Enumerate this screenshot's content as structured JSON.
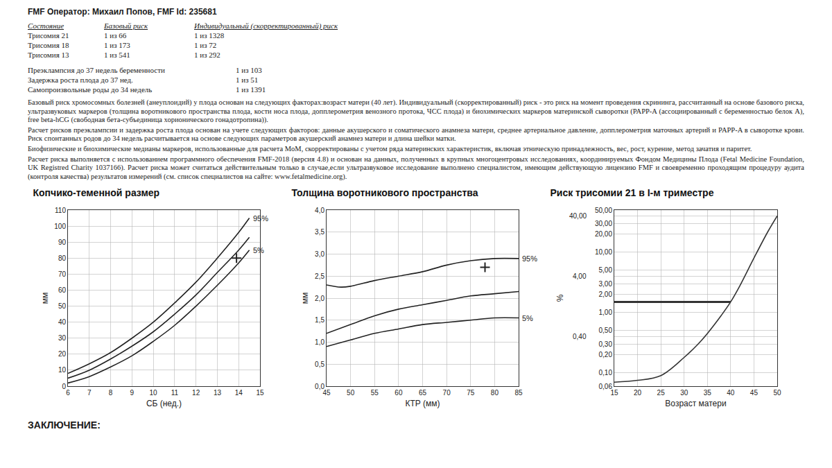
{
  "header": "FMF Оператор: Михаил Попов, FMF Id: 235681",
  "risk_table": {
    "columns": [
      "Состояние",
      "Базовый риск",
      "Индивидуальный (скорректированный) риск"
    ],
    "rows": [
      [
        "Трисомия 21",
        "1 из 66",
        "1 из 1328"
      ],
      [
        "Трисомия 18",
        "1 из 173",
        "1 из 72"
      ],
      [
        "Трисомия 13",
        "1 из 541",
        "1 из 292"
      ]
    ]
  },
  "complication_table": {
    "rows": [
      [
        "Преэклампсия до 37 недель беременности",
        "1 из 103"
      ],
      [
        "Задержка роста плода до 37 нед.",
        "1 из 51"
      ],
      [
        "Самопроизвольные роды до 34 недель",
        "1 из 1391"
      ]
    ]
  },
  "paragraphs": [
    "Базовый риск хромосомных болезней (анеуплоидий) у плода основан на следующих факторах:возраст матери (40 лет). Индивидуальный (скорректированный) риск - это риск на момент проведения скрининга, рассчитанный на основе базового риска, ультразвуковых маркеров (толщина воротникового пространства плода, кости носа плода, допплерометрия венозного протока, ЧСС плода) и биохимических маркеров материнской сыворотки (PAPP-A (ассоциированный с беременностью белок А), free beta-hCG (свободная бета-субъединица хорионического гонадотропина)).",
    "Расчет рисков преэклампсии и задержка роста плода основан на учете следующих факторов: данные акушерского и соматического анамнеза матери, среднее артериальное давление, допплерометрия маточных артерий и PAPP-A в сыворотке крови. Риск спонтанных родов до 34 недель расчитывается на основе следующих параметров акушерский анамнез матери и длина шейки матки.",
    "Биофизические и биохимические медианы маркеров, использованные для расчета MoM, скорректированы с учетом ряда материнских характеристик, включая этническую принадлежность, вес, рост, курение, метод зачатия и паритет.",
    "Расчет риска выполняется с использованием программного обеспечения FMF-2018 (версия 4.8) и основан на данных, полученных в крупных многоцентровых исследованиях, координируемых Фондом Медицины Плода (Fetal Medicine Foundation, UK Registred Charity 1037166). Расчет риска может считаться действительным только в случае,если ультразвуковое исследование выполнено специалистом, имеющим действующую лицензию FMF и своевременно проходящим процедуру аудита (контроля качества) результатов измерений (см. список специалистов на сайте: www.fetalmedicine.org)."
  ],
  "chart_data": [
    {
      "type": "line",
      "title": "Копчико-теменной размер",
      "x_label": "СБ (нед.)",
      "y_label": "мм",
      "xlim": [
        6,
        15
      ],
      "xticks": [
        6,
        7,
        8,
        9,
        10,
        11,
        12,
        13,
        14,
        15
      ],
      "ylim": [
        0,
        110
      ],
      "yticks": [
        0,
        10,
        20,
        30,
        40,
        50,
        60,
        70,
        80,
        90,
        100,
        110
      ],
      "grid": true,
      "series": [
        {
          "name": "95%",
          "color": "#222222",
          "x": [
            6,
            7,
            8,
            9,
            10,
            11,
            12,
            13,
            14,
            14.5
          ],
          "values": [
            8,
            14,
            21,
            30,
            40,
            52,
            65,
            80,
            96,
            105
          ]
        },
        {
          "color": "#222222",
          "x": [
            6,
            7,
            8,
            9,
            10,
            11,
            12,
            13,
            14,
            14.5
          ],
          "values": [
            5,
            10,
            17,
            25,
            34,
            45,
            57,
            71,
            85,
            93
          ]
        },
        {
          "name": "5%",
          "color": "#222222",
          "x": [
            6,
            7,
            8,
            9,
            10,
            11,
            12,
            13,
            14,
            14.5
          ],
          "values": [
            2,
            6,
            12,
            19,
            28,
            38,
            50,
            63,
            77,
            85
          ]
        },
        {
          "type": "scatter",
          "marker": "cross",
          "color": "#222222",
          "x": [
            13.9
          ],
          "values": [
            80
          ]
        }
      ]
    },
    {
      "type": "line",
      "title": "Толщина воротникового пространства",
      "x_label": "КТР (мм)",
      "y_label": "мм",
      "xlim": [
        45,
        85
      ],
      "xticks": [
        45,
        50,
        55,
        60,
        65,
        70,
        75,
        80,
        85
      ],
      "ylim": [
        0,
        4
      ],
      "yticks": [
        {
          "value": 0,
          "label": "0,0"
        },
        {
          "value": 0.5,
          "label": "0,5"
        },
        {
          "value": 1,
          "label": "1,0"
        },
        {
          "value": 1.5,
          "label": "1,5"
        },
        {
          "value": 2,
          "label": "2,0"
        },
        {
          "value": 2.5,
          "label": "2,5"
        },
        {
          "value": 3,
          "label": "3,0"
        },
        {
          "value": 3.5,
          "label": "3,5"
        },
        {
          "value": 4,
          "label": "4,0"
        }
      ],
      "grid": true,
      "series": [
        {
          "name": "95%",
          "color": "#222222",
          "x": [
            45,
            48,
            50,
            55,
            60,
            65,
            70,
            75,
            80,
            85
          ],
          "values": [
            2.3,
            2.25,
            2.27,
            2.4,
            2.5,
            2.6,
            2.75,
            2.85,
            2.9,
            2.9
          ]
        },
        {
          "color": "#222222",
          "x": [
            45,
            50,
            55,
            60,
            65,
            70,
            75,
            80,
            85
          ],
          "values": [
            1.2,
            1.4,
            1.6,
            1.75,
            1.85,
            1.95,
            2.05,
            2.1,
            2.15
          ]
        },
        {
          "name": "5%",
          "color": "#222222",
          "x": [
            45,
            50,
            55,
            60,
            65,
            70,
            75,
            80,
            85
          ],
          "values": [
            0.9,
            1.05,
            1.2,
            1.3,
            1.4,
            1.45,
            1.5,
            1.55,
            1.55
          ]
        },
        {
          "type": "scatter",
          "marker": "cross",
          "color": "#222222",
          "x": [
            78
          ],
          "values": [
            2.7
          ]
        }
      ]
    },
    {
      "type": "line",
      "title": "Риск трисомии 21 в I-м триместре",
      "x_label": "Возраст матери",
      "y_label": "%",
      "log": "y",
      "xlim": [
        15,
        50
      ],
      "xticks": [
        15,
        20,
        25,
        30,
        35,
        40,
        45,
        50
      ],
      "ylim": [
        0.06,
        50
      ],
      "yticks": [
        {
          "value": 0.06,
          "label": "0,06"
        },
        {
          "value": 0.1,
          "label": "0,10"
        },
        {
          "value": 0.2,
          "label": "0,20"
        },
        {
          "value": 0.3,
          "label": "0,30"
        },
        {
          "value": 0.4,
          "label": "0,40"
        },
        {
          "value": 0.5,
          "label": "0,50"
        },
        {
          "value": 1,
          "label": "1,00"
        },
        {
          "value": 2,
          "label": "2,00"
        },
        {
          "value": 3,
          "label": "3,00"
        },
        {
          "value": 4,
          "label": "4,00"
        },
        {
          "value": 5,
          "label": "5,00"
        },
        {
          "value": 10,
          "label": "10,00"
        },
        {
          "value": 20,
          "label": "20,00"
        },
        {
          "value": 30,
          "label": "30,00"
        },
        {
          "value": 40,
          "label": "40,00"
        },
        {
          "value": 50,
          "label": "50,00"
        }
      ],
      "grid": true,
      "series": [
        {
          "color": "#333333",
          "x": [
            15,
            20,
            25,
            30,
            33,
            35,
            38,
            40,
            42,
            45,
            48,
            50
          ],
          "values": [
            0.07,
            0.075,
            0.09,
            0.18,
            0.3,
            0.45,
            0.9,
            1.5,
            2.8,
            8,
            22,
            40
          ]
        },
        {
          "color": "#333333",
          "line_style": "thick",
          "x": [
            15,
            40
          ],
          "values": [
            1.5,
            1.5
          ]
        }
      ]
    }
  ],
  "conclusion": "ЗАКЛЮЧЕНИЕ:"
}
